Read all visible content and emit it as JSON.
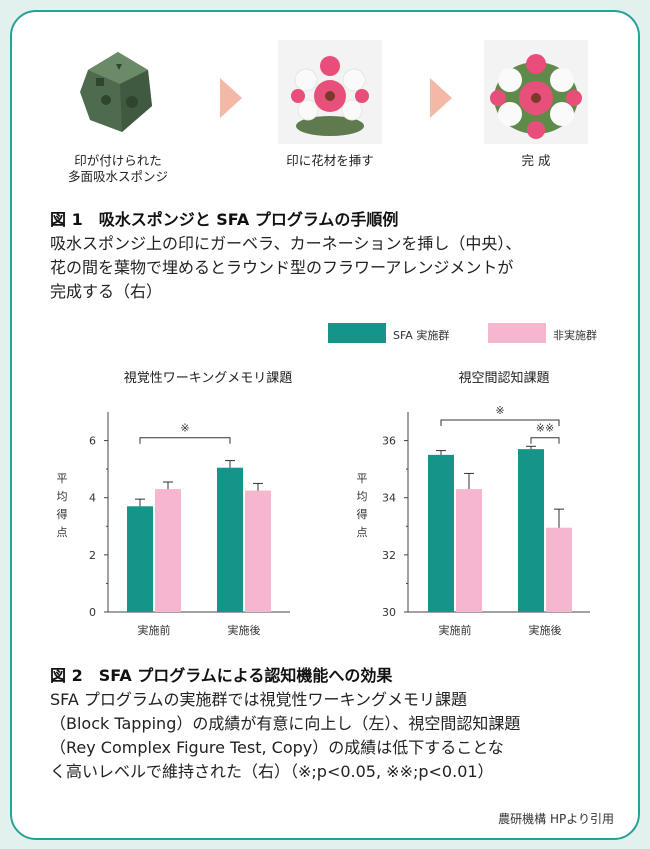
{
  "steps": [
    {
      "caption_line1": "印が付けられた",
      "caption_line2": "多面吸水スポンジ"
    },
    {
      "caption_line1": "印に花材を挿す",
      "caption_line2": ""
    },
    {
      "caption_line1": "完 成",
      "caption_line2": ""
    }
  ],
  "fig1": {
    "title": "図 1　吸水スポンジと SFA プログラムの手順例",
    "text_lines": [
      "吸水スポンジ上の印にガーベラ、カーネーションを挿し（中央）、",
      "花の間を葉物で埋めるとラウンド型のフラワーアレンジメントが",
      "完成する（右）"
    ]
  },
  "legend": {
    "items": [
      {
        "label": "SFA 実施群",
        "color": "#15948a"
      },
      {
        "label": "非実施群",
        "color": "#f6b6cf"
      }
    ]
  },
  "chart_data": [
    {
      "type": "bar",
      "title": "視覚性ワーキングメモリ課題",
      "ylabel": "平均得点",
      "categories": [
        "実施前",
        "実施後"
      ],
      "ylim": [
        0,
        7
      ],
      "yticks": [
        0,
        2,
        4,
        6
      ],
      "series": [
        {
          "name": "SFA 実施群",
          "values": [
            3.7,
            5.05
          ],
          "errors": [
            0.25,
            0.25
          ],
          "color": "#15948a"
        },
        {
          "name": "非実施群",
          "values": [
            4.3,
            4.25
          ],
          "errors": [
            0.25,
            0.25
          ],
          "color": "#f6b6cf"
        }
      ],
      "annotations": [
        {
          "text": "※"
        }
      ]
    },
    {
      "type": "bar",
      "title": "視空間認知課題",
      "ylabel": "平均得点",
      "categories": [
        "実施前",
        "実施後"
      ],
      "ylim": [
        30,
        37
      ],
      "yticks": [
        30,
        32,
        34,
        36
      ],
      "series": [
        {
          "name": "SFA 実施群",
          "values": [
            35.5,
            35.7
          ],
          "errors": [
            0.15,
            0.1
          ],
          "color": "#15948a"
        },
        {
          "name": "非実施群",
          "values": [
            34.3,
            32.95
          ],
          "errors": [
            0.55,
            0.65
          ],
          "color": "#f6b6cf"
        }
      ],
      "annotations": [
        {
          "text": "※"
        },
        {
          "text": "※※"
        }
      ]
    }
  ],
  "fig2": {
    "title": "図 2　SFA プログラムによる認知機能への効果",
    "text_lines": [
      "SFA プログラムの実施群では視覚性ワーキングメモリ課題",
      "（Block Tapping）の成績が有意に向上し（左）、視空間認知課題",
      "（Rey Complex Figure Test, Copy）の成績は低下することな",
      "く高いレベルで維持された（右）（※;p<0.05, ※※;p<0.01）"
    ]
  },
  "source": "農研機構 HPより引用"
}
